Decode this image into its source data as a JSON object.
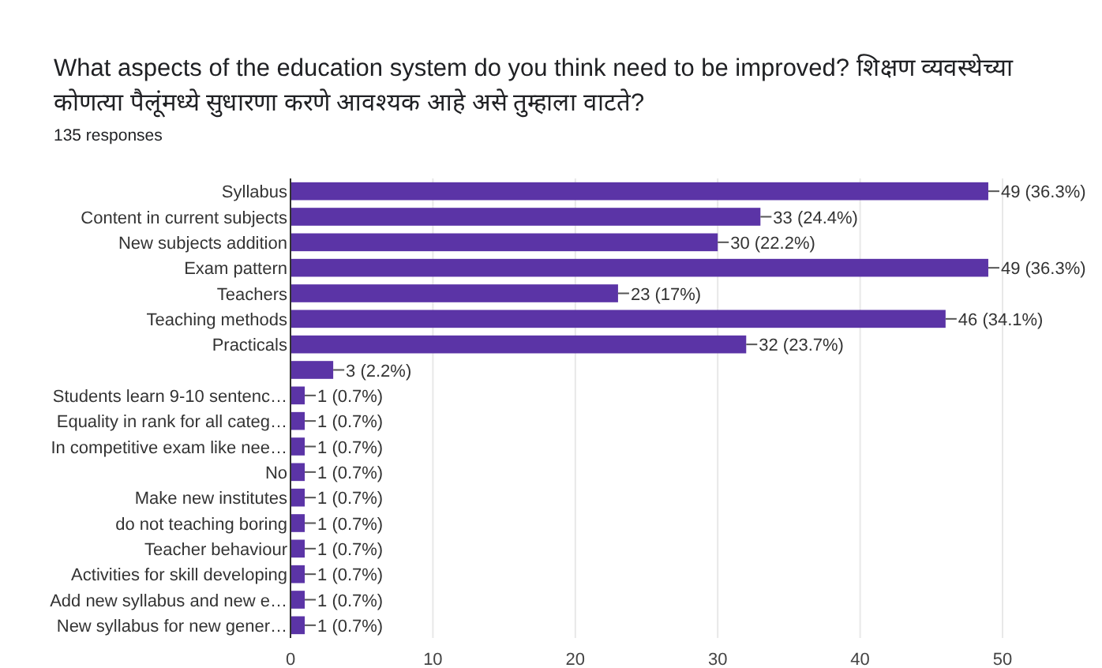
{
  "chart_data": {
    "type": "bar",
    "orientation": "horizontal",
    "title": "What aspects of the education system do you think need to be improved?  शिक्षण व्यवस्थेच्या कोणत्या पैलूंमध्ये सुधारणा करणे आवश्यक आहे असे तुम्हाला वाटते?",
    "subtitle": "135 responses",
    "categories": [
      "Syllabus",
      "Content in current subjects",
      "New subjects addition",
      "Exam pattern",
      "Teachers",
      "Teaching methods",
      "Practicals",
      null,
      "Students learn 9-10 sentenc…",
      "Equality in rank for all categ…",
      "In competitive exam like nee…",
      "No",
      "Make new institutes",
      "do not teaching boring",
      "Teacher behaviour",
      "Activities for skill developing",
      "Add new syllabus and new e…",
      "New syllabus for new gener…"
    ],
    "values": [
      49,
      33,
      30,
      49,
      23,
      46,
      32,
      3,
      1,
      1,
      1,
      1,
      1,
      1,
      1,
      1,
      1,
      1
    ],
    "value_labels": [
      "49 (36.3%)",
      "33 (24.4%)",
      "30 (22.2%)",
      "49 (36.3%)",
      "23 (17%)",
      "46 (34.1%)",
      "32 (23.7%)",
      "3 (2.2%)",
      "1 (0.7%)",
      "1 (0.7%)",
      "1 (0.7%)",
      "1 (0.7%)",
      "1 (0.7%)",
      "1 (0.7%)",
      "1 (0.7%)",
      "1 (0.7%)",
      "1 (0.7%)",
      "1 (0.7%)"
    ],
    "color": "#5b34a6",
    "xlim": [
      0,
      50
    ],
    "xticks": [
      0,
      10,
      20,
      30,
      40,
      50
    ],
    "grid": "x"
  }
}
